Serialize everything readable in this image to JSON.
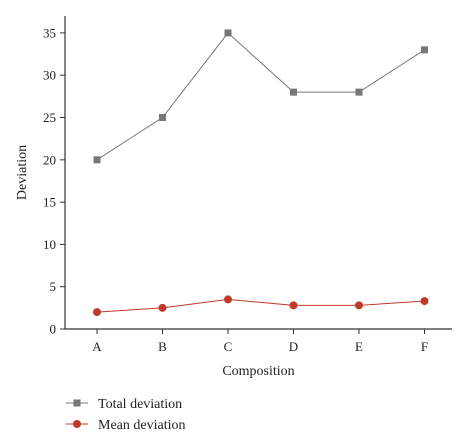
{
  "chart_data": {
    "type": "line",
    "categories": [
      "A",
      "B",
      "C",
      "D",
      "E",
      "F"
    ],
    "series": [
      {
        "name": "Total deviation",
        "values": [
          20,
          25,
          35,
          28,
          28,
          33
        ],
        "color": "#777777",
        "marker": "square"
      },
      {
        "name": "Mean deviation",
        "values": [
          2.0,
          2.5,
          3.5,
          2.8,
          2.8,
          3.3
        ],
        "color": "#c0392b",
        "marker": "circle"
      }
    ],
    "xlabel": "Composition",
    "ylabel": "Deviation",
    "ylim": [
      0,
      37
    ],
    "yticks": [
      0,
      5,
      10,
      15,
      20,
      25,
      30,
      35
    ],
    "grid": false,
    "legend_position": "bottom-left"
  }
}
